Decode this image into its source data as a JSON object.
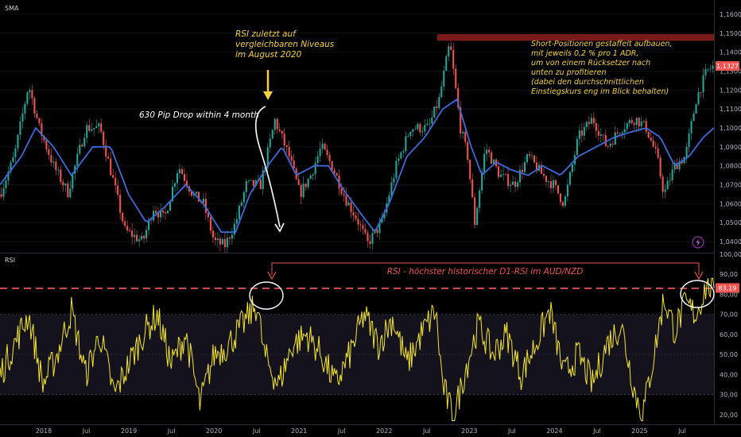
{
  "chart_data": [
    {
      "type": "candlestick",
      "pane": "price",
      "indicator_label": "SMA",
      "instrument": "AUD/NZD",
      "timeframe": "D1",
      "y_axis_ticks": [
        "1,1600",
        "1,1500",
        "1,1400",
        "1,1300",
        "1,1200",
        "1,1100",
        "1,1000",
        "1,0900",
        "1,0800",
        "1,0700",
        "1,0600",
        "1,0500",
        "1,0400"
      ],
      "ylim": [
        1.035,
        1.165
      ],
      "current_price_label": "1,1327",
      "current_price": 1.1327,
      "resistance_zone": [
        1.146,
        1.1495
      ],
      "price_anchors": [
        {
          "t": 0.0,
          "v": 1.065
        },
        {
          "t": 0.02,
          "v": 1.085
        },
        {
          "t": 0.04,
          "v": 1.123
        },
        {
          "t": 0.055,
          "v": 1.1
        },
        {
          "t": 0.075,
          "v": 1.08
        },
        {
          "t": 0.095,
          "v": 1.066
        },
        {
          "t": 0.12,
          "v": 1.1
        },
        {
          "t": 0.14,
          "v": 1.1
        },
        {
          "t": 0.16,
          "v": 1.07
        },
        {
          "t": 0.175,
          "v": 1.046
        },
        {
          "t": 0.2,
          "v": 1.04
        },
        {
          "t": 0.215,
          "v": 1.058
        },
        {
          "t": 0.23,
          "v": 1.052
        },
        {
          "t": 0.25,
          "v": 1.08
        },
        {
          "t": 0.27,
          "v": 1.065
        },
        {
          "t": 0.285,
          "v": 1.06
        },
        {
          "t": 0.3,
          "v": 1.04
        },
        {
          "t": 0.315,
          "v": 1.038
        },
        {
          "t": 0.33,
          "v": 1.05
        },
        {
          "t": 0.345,
          "v": 1.07
        },
        {
          "t": 0.365,
          "v": 1.07
        },
        {
          "t": 0.385,
          "v": 1.104
        },
        {
          "t": 0.405,
          "v": 1.085
        },
        {
          "t": 0.42,
          "v": 1.065
        },
        {
          "t": 0.435,
          "v": 1.075
        },
        {
          "t": 0.45,
          "v": 1.09
        },
        {
          "t": 0.465,
          "v": 1.08
        },
        {
          "t": 0.485,
          "v": 1.062
        },
        {
          "t": 0.5,
          "v": 1.052
        },
        {
          "t": 0.515,
          "v": 1.039
        },
        {
          "t": 0.535,
          "v": 1.05
        },
        {
          "t": 0.555,
          "v": 1.08
        },
        {
          "t": 0.575,
          "v": 1.1
        },
        {
          "t": 0.6,
          "v": 1.1
        },
        {
          "t": 0.615,
          "v": 1.115
        },
        {
          "t": 0.63,
          "v": 1.145
        },
        {
          "t": 0.645,
          "v": 1.1
        },
        {
          "t": 0.655,
          "v": 1.085
        },
        {
          "t": 0.665,
          "v": 1.05
        },
        {
          "t": 0.68,
          "v": 1.09
        },
        {
          "t": 0.7,
          "v": 1.075
        },
        {
          "t": 0.72,
          "v": 1.07
        },
        {
          "t": 0.74,
          "v": 1.085
        },
        {
          "t": 0.76,
          "v": 1.075
        },
        {
          "t": 0.775,
          "v": 1.07
        },
        {
          "t": 0.79,
          "v": 1.06
        },
        {
          "t": 0.81,
          "v": 1.095
        },
        {
          "t": 0.83,
          "v": 1.105
        },
        {
          "t": 0.85,
          "v": 1.09
        },
        {
          "t": 0.87,
          "v": 1.1
        },
        {
          "t": 0.89,
          "v": 1.105
        },
        {
          "t": 0.905,
          "v": 1.1
        },
        {
          "t": 0.92,
          "v": 1.085
        },
        {
          "t": 0.93,
          "v": 1.065
        },
        {
          "t": 0.945,
          "v": 1.08
        },
        {
          "t": 0.96,
          "v": 1.085
        },
        {
          "t": 0.975,
          "v": 1.115
        },
        {
          "t": 0.99,
          "v": 1.13
        },
        {
          "t": 1.0,
          "v": 1.1327
        }
      ],
      "sma_anchors": [
        {
          "t": 0.0,
          "v": 1.07
        },
        {
          "t": 0.03,
          "v": 1.085
        },
        {
          "t": 0.05,
          "v": 1.1
        },
        {
          "t": 0.075,
          "v": 1.09
        },
        {
          "t": 0.1,
          "v": 1.075
        },
        {
          "t": 0.13,
          "v": 1.09
        },
        {
          "t": 0.155,
          "v": 1.09
        },
        {
          "t": 0.18,
          "v": 1.065
        },
        {
          "t": 0.205,
          "v": 1.05
        },
        {
          "t": 0.23,
          "v": 1.058
        },
        {
          "t": 0.26,
          "v": 1.07
        },
        {
          "t": 0.285,
          "v": 1.06
        },
        {
          "t": 0.31,
          "v": 1.045
        },
        {
          "t": 0.33,
          "v": 1.045
        },
        {
          "t": 0.35,
          "v": 1.065
        },
        {
          "t": 0.375,
          "v": 1.08
        },
        {
          "t": 0.395,
          "v": 1.09
        },
        {
          "t": 0.415,
          "v": 1.075
        },
        {
          "t": 0.44,
          "v": 1.08
        },
        {
          "t": 0.46,
          "v": 1.08
        },
        {
          "t": 0.48,
          "v": 1.068
        },
        {
          "t": 0.505,
          "v": 1.055
        },
        {
          "t": 0.525,
          "v": 1.045
        },
        {
          "t": 0.545,
          "v": 1.06
        },
        {
          "t": 0.57,
          "v": 1.085
        },
        {
          "t": 0.595,
          "v": 1.095
        },
        {
          "t": 0.62,
          "v": 1.11
        },
        {
          "t": 0.64,
          "v": 1.115
        },
        {
          "t": 0.66,
          "v": 1.09
        },
        {
          "t": 0.675,
          "v": 1.075
        },
        {
          "t": 0.695,
          "v": 1.082
        },
        {
          "t": 0.715,
          "v": 1.078
        },
        {
          "t": 0.74,
          "v": 1.075
        },
        {
          "t": 0.76,
          "v": 1.08
        },
        {
          "t": 0.785,
          "v": 1.075
        },
        {
          "t": 0.81,
          "v": 1.085
        },
        {
          "t": 0.835,
          "v": 1.09
        },
        {
          "t": 0.86,
          "v": 1.095
        },
        {
          "t": 0.885,
          "v": 1.098
        },
        {
          "t": 0.905,
          "v": 1.1
        },
        {
          "t": 0.925,
          "v": 1.095
        },
        {
          "t": 0.945,
          "v": 1.08
        },
        {
          "t": 0.965,
          "v": 1.085
        },
        {
          "t": 0.985,
          "v": 1.095
        },
        {
          "t": 1.0,
          "v": 1.1
        }
      ],
      "annotations": {
        "rsi_note": [
          "RSI zuletzt auf",
          "vergleichbaren Niveaus",
          "im August 2020"
        ],
        "drop_note": "630 Pip Drop within 4 month",
        "short_note": [
          "Short-Positionen gestaffelt aufbauen,",
          "mit jeweils 0,2 % pro 1 ADR,",
          "um von einem Rücksetzer nach",
          "unten zu profitieren",
          "(dabei den durchschnittlichen",
          "Einstiegskurs eng im Blick behalten)"
        ]
      },
      "colors": {
        "up": "#26a69a",
        "down": "#ef5350",
        "sma": "#3d6bdb",
        "zone": "#7a1a1a",
        "note_yellow": "#f5d142",
        "note_white": "#ffffff",
        "price_tag": "#ef5350"
      }
    },
    {
      "type": "line",
      "pane": "rsi",
      "indicator_label": "RSI",
      "y_axis_ticks": [
        "100,00",
        "90,00",
        "80,00",
        "70,00",
        "60,00",
        "50,00",
        "40,00",
        "30,00",
        "20,00"
      ],
      "ylim": [
        16,
        100
      ],
      "band": [
        30,
        70
      ],
      "current_value_label": "83,19",
      "current_value": 83.19,
      "max_line": 83,
      "rsi_anchors": [
        {
          "t": 0.0,
          "v": 40
        },
        {
          "t": 0.02,
          "v": 55
        },
        {
          "t": 0.04,
          "v": 70
        },
        {
          "t": 0.06,
          "v": 35
        },
        {
          "t": 0.08,
          "v": 50
        },
        {
          "t": 0.1,
          "v": 72
        },
        {
          "t": 0.12,
          "v": 40
        },
        {
          "t": 0.14,
          "v": 60
        },
        {
          "t": 0.16,
          "v": 30
        },
        {
          "t": 0.18,
          "v": 45
        },
        {
          "t": 0.2,
          "v": 60
        },
        {
          "t": 0.22,
          "v": 70
        },
        {
          "t": 0.24,
          "v": 45
        },
        {
          "t": 0.26,
          "v": 60
        },
        {
          "t": 0.28,
          "v": 25
        },
        {
          "t": 0.3,
          "v": 50
        },
        {
          "t": 0.32,
          "v": 55
        },
        {
          "t": 0.34,
          "v": 65
        },
        {
          "t": 0.36,
          "v": 75
        },
        {
          "t": 0.37,
          "v": 50
        },
        {
          "t": 0.39,
          "v": 35
        },
        {
          "t": 0.41,
          "v": 55
        },
        {
          "t": 0.43,
          "v": 60
        },
        {
          "t": 0.45,
          "v": 50
        },
        {
          "t": 0.47,
          "v": 35
        },
        {
          "t": 0.49,
          "v": 50
        },
        {
          "t": 0.51,
          "v": 70
        },
        {
          "t": 0.53,
          "v": 55
        },
        {
          "t": 0.55,
          "v": 68
        },
        {
          "t": 0.57,
          "v": 45
        },
        {
          "t": 0.59,
          "v": 60
        },
        {
          "t": 0.61,
          "v": 72
        },
        {
          "t": 0.62,
          "v": 35
        },
        {
          "t": 0.635,
          "v": 18
        },
        {
          "t": 0.65,
          "v": 40
        },
        {
          "t": 0.67,
          "v": 65
        },
        {
          "t": 0.69,
          "v": 50
        },
        {
          "t": 0.71,
          "v": 60
        },
        {
          "t": 0.73,
          "v": 40
        },
        {
          "t": 0.75,
          "v": 55
        },
        {
          "t": 0.77,
          "v": 72
        },
        {
          "t": 0.79,
          "v": 40
        },
        {
          "t": 0.81,
          "v": 50
        },
        {
          "t": 0.83,
          "v": 35
        },
        {
          "t": 0.85,
          "v": 55
        },
        {
          "t": 0.87,
          "v": 65
        },
        {
          "t": 0.89,
          "v": 30
        },
        {
          "t": 0.9,
          "v": 20
        },
        {
          "t": 0.915,
          "v": 48
        },
        {
          "t": 0.93,
          "v": 78
        },
        {
          "t": 0.945,
          "v": 62
        },
        {
          "t": 0.96,
          "v": 75
        },
        {
          "t": 0.975,
          "v": 70
        },
        {
          "t": 0.99,
          "v": 85
        },
        {
          "t": 1.0,
          "v": 83.19
        }
      ],
      "annotations": {
        "title": "RSI - höchster historischer D1-RSI im AUD/NZD"
      },
      "colors": {
        "line": "#f5e62f",
        "dashed": "#ef5350",
        "band": "#14121c",
        "value_tag": "#ef5350"
      }
    }
  ],
  "x_axis_labels": [
    "2018",
    "Jul",
    "2019",
    "Jul",
    "2020",
    "Jul",
    "2021",
    "Jul",
    "2022",
    "Jul",
    "2023",
    "Jul",
    "2024",
    "Jul",
    "2025",
    "Jul"
  ],
  "icons": {
    "lightning": "lightning-icon"
  }
}
